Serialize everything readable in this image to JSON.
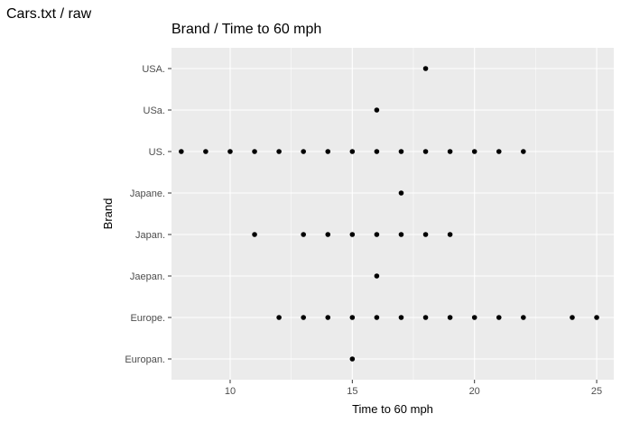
{
  "window": {
    "title": "Cars.txt / raw"
  },
  "chart_data": {
    "type": "scatter",
    "title": "Brand / Time to 60 mph",
    "xlabel": "Time to 60 mph",
    "ylabel": "Brand",
    "xlim": [
      7.6,
      25.7
    ],
    "x_ticks": [
      10,
      15,
      20,
      25
    ],
    "categories": [
      "USA.",
      "USa.",
      "US.",
      "Japane.",
      "Japan.",
      "Jaepan.",
      "Europe.",
      "Europan."
    ],
    "points": [
      {
        "brand": "USA.",
        "x": 18
      },
      {
        "brand": "USa.",
        "x": 16
      },
      {
        "brand": "US.",
        "x": 8
      },
      {
        "brand": "US.",
        "x": 9
      },
      {
        "brand": "US.",
        "x": 10
      },
      {
        "brand": "US.",
        "x": 11
      },
      {
        "brand": "US.",
        "x": 12
      },
      {
        "brand": "US.",
        "x": 13
      },
      {
        "brand": "US.",
        "x": 14
      },
      {
        "brand": "US.",
        "x": 15
      },
      {
        "brand": "US.",
        "x": 16
      },
      {
        "brand": "US.",
        "x": 17
      },
      {
        "brand": "US.",
        "x": 18
      },
      {
        "brand": "US.",
        "x": 19
      },
      {
        "brand": "US.",
        "x": 20
      },
      {
        "brand": "US.",
        "x": 21
      },
      {
        "brand": "US.",
        "x": 22
      },
      {
        "brand": "Japane.",
        "x": 17
      },
      {
        "brand": "Japan.",
        "x": 11
      },
      {
        "brand": "Japan.",
        "x": 13
      },
      {
        "brand": "Japan.",
        "x": 14
      },
      {
        "brand": "Japan.",
        "x": 15
      },
      {
        "brand": "Japan.",
        "x": 16
      },
      {
        "brand": "Japan.",
        "x": 17
      },
      {
        "brand": "Japan.",
        "x": 18
      },
      {
        "brand": "Japan.",
        "x": 19
      },
      {
        "brand": "Jaepan.",
        "x": 16
      },
      {
        "brand": "Europe.",
        "x": 12
      },
      {
        "brand": "Europe.",
        "x": 13
      },
      {
        "brand": "Europe.",
        "x": 14
      },
      {
        "brand": "Europe.",
        "x": 15
      },
      {
        "brand": "Europe.",
        "x": 16
      },
      {
        "brand": "Europe.",
        "x": 17
      },
      {
        "brand": "Europe.",
        "x": 18
      },
      {
        "brand": "Europe.",
        "x": 19
      },
      {
        "brand": "Europe.",
        "x": 20
      },
      {
        "brand": "Europe.",
        "x": 21
      },
      {
        "brand": "Europe.",
        "x": 22
      },
      {
        "brand": "Europe.",
        "x": 24
      },
      {
        "brand": "Europe.",
        "x": 25
      },
      {
        "brand": "Europan.",
        "x": 15
      }
    ],
    "grid": true,
    "legend": "none",
    "colors": {
      "panel": "#ebebeb",
      "grid": "#ffffff",
      "point": "#000000",
      "tick_text": "#4d4d4d"
    }
  }
}
